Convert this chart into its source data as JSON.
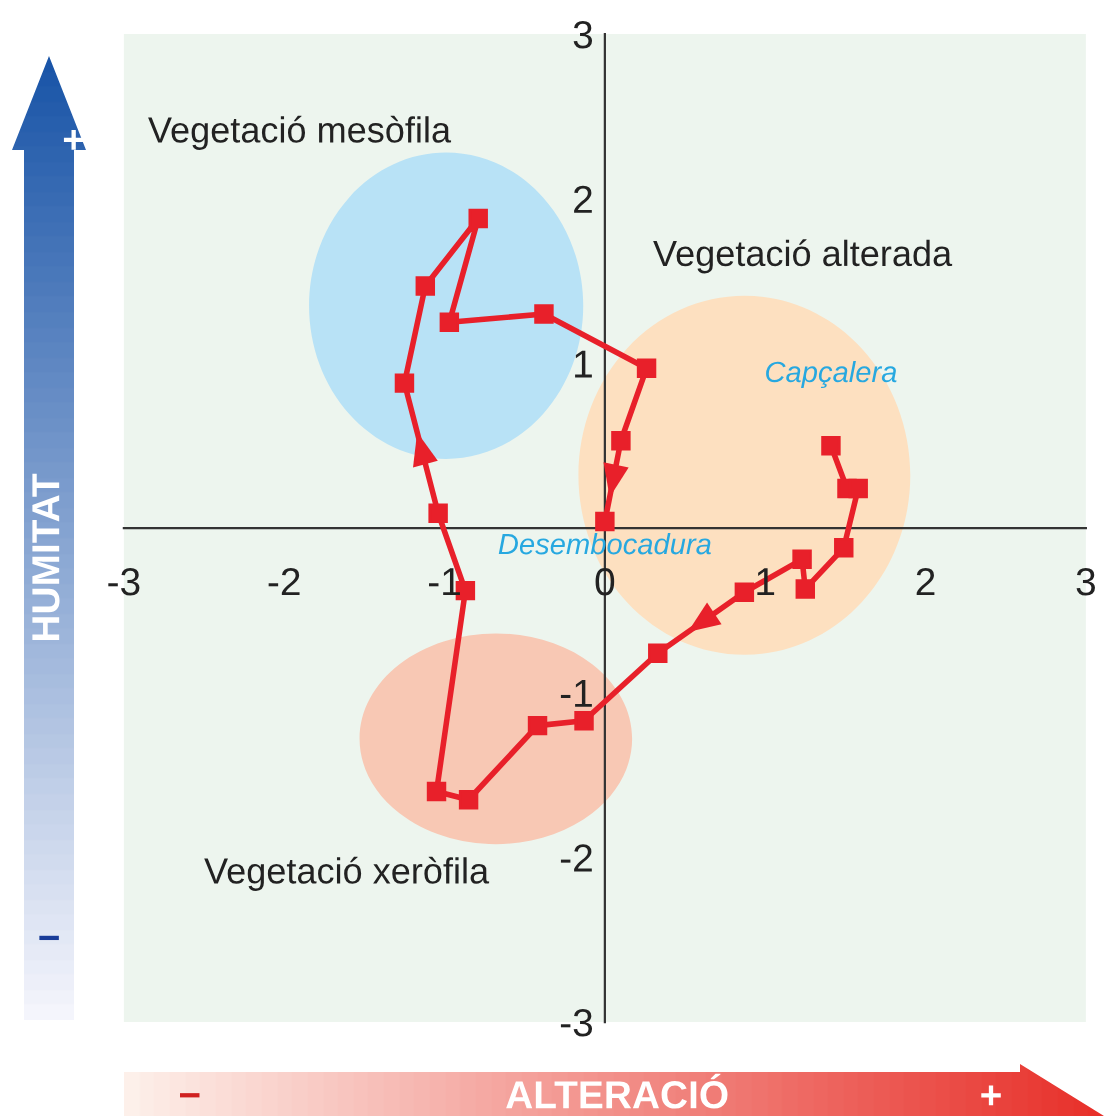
{
  "chart_data": {
    "type": "line",
    "xlabel": "ALTERACIÓ",
    "ylabel": "HUMITAT",
    "x": [
      1.41,
      1.51,
      1.58,
      1.49,
      1.25,
      1.23,
      0.87,
      0.33,
      -0.13,
      -0.42,
      -0.85,
      -1.05,
      -0.87,
      -1.04,
      -1.25,
      -1.12,
      -0.79,
      -0.97,
      -0.38,
      0.26,
      0.1,
      0.0
    ],
    "series": [
      {
        "color": "#e8202a",
        "values": [
          0.5,
          0.24,
          0.24,
          -0.12,
          -0.37,
          -0.19,
          -0.39,
          -0.76,
          -1.17,
          -1.2,
          -1.65,
          -1.6,
          -0.38,
          0.09,
          0.88,
          1.47,
          1.88,
          1.25,
          1.3,
          0.97,
          0.53,
          0.04
        ]
      }
    ],
    "xlim": [
      -3,
      3
    ],
    "ylim": [
      -3,
      3
    ],
    "xticks": [
      -3,
      -2,
      -1,
      0,
      1,
      2,
      3
    ],
    "yticks": [
      -3,
      -2,
      -1,
      1,
      2,
      3
    ],
    "marker": "square",
    "line_style": "solid",
    "grid": false,
    "annotations": [
      "Vegetació mesòfila",
      "Vegetació alterada",
      "Vegetació xeròfila",
      {
        "text": "Capçalera",
        "x": 1.41,
        "y": 0.5
      },
      {
        "text": "Desembocadura",
        "x": 0.0,
        "y": 0.04
      },
      "+",
      "−",
      "−",
      "+"
    ]
  }
}
